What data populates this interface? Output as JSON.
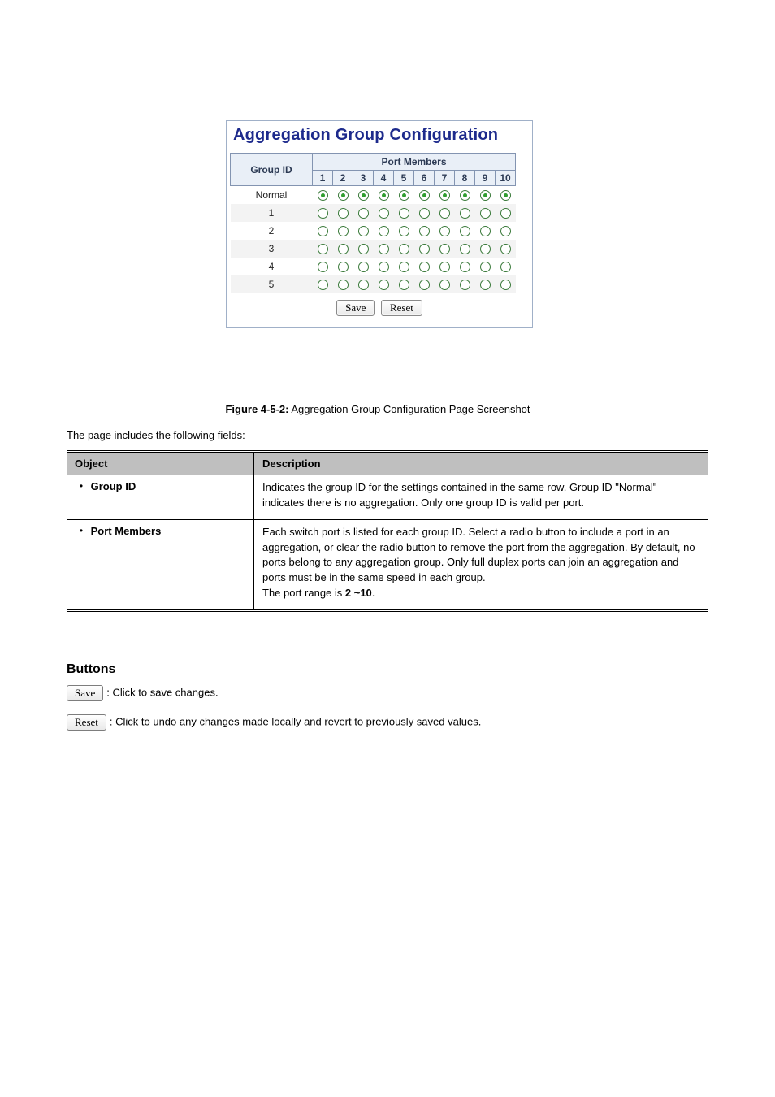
{
  "config_panel": {
    "title": "Aggregation Group Configuration",
    "port_members_header": "Port Members",
    "group_id_header": "Group ID",
    "port_numbers": [
      "1",
      "2",
      "3",
      "4",
      "5",
      "6",
      "7",
      "8",
      "9",
      "10"
    ],
    "rows": [
      {
        "label": "Normal",
        "selected_row": true
      },
      {
        "label": "1",
        "selected_row": false
      },
      {
        "label": "2",
        "selected_row": false
      },
      {
        "label": "3",
        "selected_row": false
      },
      {
        "label": "4",
        "selected_row": false
      },
      {
        "label": "5",
        "selected_row": false
      }
    ],
    "save_label": "Save",
    "reset_label": "Reset"
  },
  "figure": {
    "bold": "Figure 4-5-2:",
    "text": " Aggregation Group Configuration Page Screenshot"
  },
  "intro": "The page includes the following fields:",
  "desc_table": {
    "h_object": "Object",
    "h_desc": "Description",
    "rows": [
      {
        "object": "Group ID",
        "desc_single": "Indicates the group ID for the settings contained in the same row. Group ID \"Normal\" indicates there is no aggregation. Only one group ID is valid per port."
      },
      {
        "object": "Port Members",
        "desc_p1": "Each switch port is listed for each group ID. Select a radio button to include a port in an aggregation, or clear the radio button to remove the port from the aggregation. By default, no ports belong to any aggregation group. Only full duplex ports can join an aggregation and ports must be in the same speed in each group.",
        "range_bold": "2 ~10",
        "desc_p2_pre": "The port range is ",
        "desc_p2_post": "."
      }
    ]
  },
  "buttons_section": {
    "heading": "Buttons",
    "save": {
      "btn": "Save",
      "text": ": Click to save changes."
    },
    "reset": {
      "btn": "Reset",
      "text": ": Click to undo any changes made locally and revert to previously saved values."
    }
  }
}
